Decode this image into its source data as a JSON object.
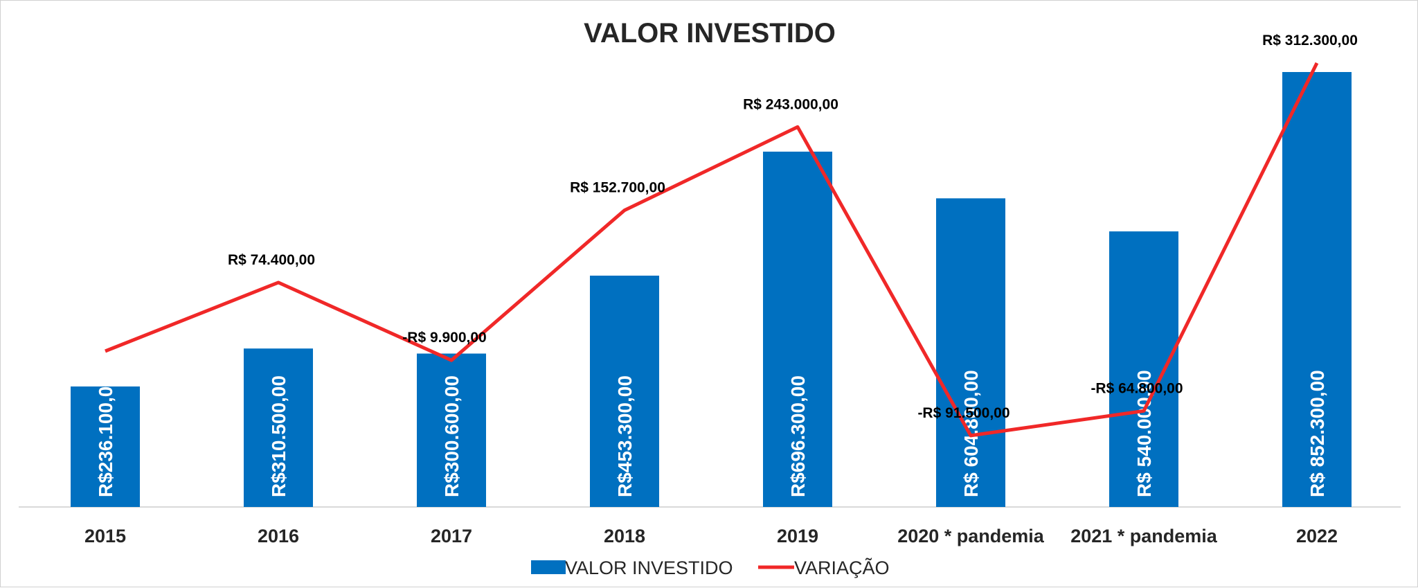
{
  "chart_data": {
    "type": "bar",
    "title": "VALOR INVESTIDO",
    "xlabel": "",
    "ylabel": "",
    "categories": [
      "2015",
      "2016",
      "2017",
      "2018",
      "2019",
      "2020 * pandemia",
      "2021 * pandemia",
      "2022"
    ],
    "series": [
      {
        "name": "VALOR INVESTIDO",
        "type": "bar",
        "color": "#0070C0",
        "values": [
          236100,
          310500,
          300600,
          453300,
          696300,
          604800,
          540000,
          852300
        ],
        "labels": [
          "R$236.100,00",
          "R$310.500,00",
          "R$300.600,00",
          "R$453.300,00",
          "R$696.300,00",
          "R$ 604.800,00",
          "R$ 540.000,00",
          "R$ 852.300,00"
        ]
      },
      {
        "name": "VARIAÇÃO",
        "type": "line",
        "color": "#F02828",
        "values": [
          0,
          74400,
          -9900,
          152700,
          243000,
          -91500,
          -64800,
          312300
        ],
        "labels": [
          "",
          "R$ 74.400,00",
          "-R$ 9.900,00",
          "R$ 152.700,00",
          "R$ 243.000,00",
          "-R$ 91.500,00",
          "-R$ 64.800,00",
          "R$ 312.300,00"
        ]
      }
    ],
    "grid": false,
    "legend_position": "bottom"
  }
}
